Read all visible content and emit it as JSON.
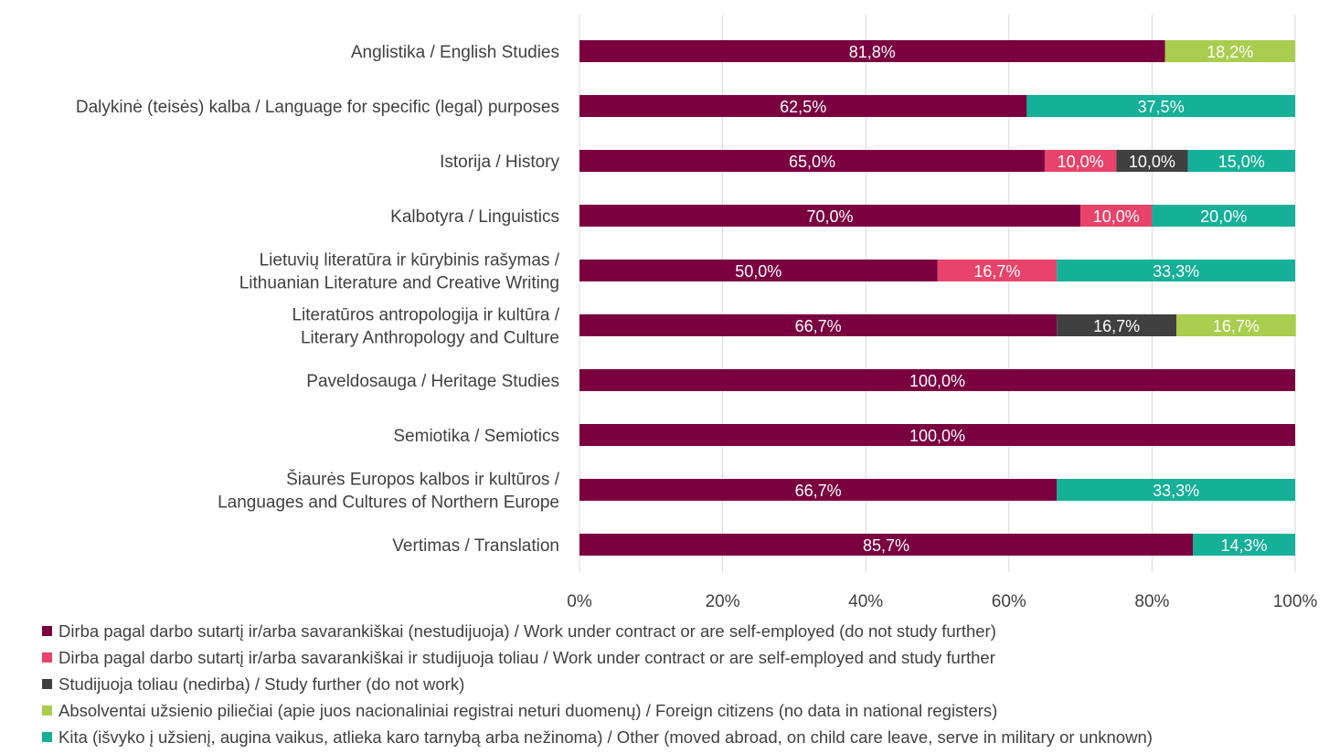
{
  "chart_data": {
    "type": "bar",
    "orientation": "horizontal",
    "stacked": "percent",
    "categories": [
      [
        "Anglistika / English Studies"
      ],
      [
        "Dalykinė (teisės) kalba / Language for specific (legal) purposes"
      ],
      [
        "Istorija / History"
      ],
      [
        "Kalbotyra / Linguistics"
      ],
      [
        "Lietuvių literatūra ir kūrybinis rašymas /",
        "Lithuanian Literature and Creative Writing"
      ],
      [
        "Literatūros antropologija ir kultūra /",
        "Literary Anthropology and Culture"
      ],
      [
        "Paveldosauga / Heritage Studies"
      ],
      [
        "Semiotika / Semiotics"
      ],
      [
        "Šiaurės Europos kalbos ir kultūros /",
        "Languages and Cultures of Northern Europe"
      ],
      [
        "Vertimas / Translation"
      ]
    ],
    "series": [
      {
        "name": "Dirba pagal darbo sutartį ir/arba savarankiškai (nestudijuoja) / Work under contract or are self-employed (do not study further)",
        "color": "#7A0040",
        "values": [
          81.8,
          62.5,
          65.0,
          70.0,
          50.0,
          66.7,
          100.0,
          100.0,
          66.7,
          85.7
        ],
        "labels": [
          "81,8%",
          "62,5%",
          "65,0%",
          "70,0%",
          "50,0%",
          "66,7%",
          "100,0%",
          "100,0%",
          "66,7%",
          "85,7%"
        ]
      },
      {
        "name": "Dirba pagal darbo sutartį ir/arba savarankiškai  ir studijuoja toliau / Work under contract or are self-employed and study further",
        "color": "#E8436A",
        "values": [
          0,
          0,
          10.0,
          10.0,
          16.7,
          0,
          0,
          0,
          0,
          0
        ],
        "labels": [
          "",
          "",
          "10,0%",
          "10,0%",
          "16,7%",
          "",
          "",
          "",
          "",
          ""
        ]
      },
      {
        "name": "Studijuoja toliau (nedirba) / Study further (do not work)",
        "color": "#404040",
        "values": [
          0,
          0,
          10.0,
          0,
          0,
          16.7,
          0,
          0,
          0,
          0
        ],
        "labels": [
          "",
          "",
          "10,0%",
          "",
          "",
          "16,7%",
          "",
          "",
          "",
          ""
        ]
      },
      {
        "name": "Absolventai užsienio piliečiai (apie juos nacionaliniai registrai neturi duomenų) / Foreign citizens (no data in national registers)",
        "color": "#A9CD4E",
        "values": [
          18.2,
          0,
          0,
          0,
          0,
          16.7,
          0,
          0,
          0,
          0
        ],
        "labels": [
          "18,2%",
          "",
          "",
          "",
          "",
          "16,7%",
          "",
          "",
          "",
          ""
        ]
      },
      {
        "name": "Kita (išvyko į užsienį, augina vaikus, atlieka karo tarnybą arba nežinoma) / Other (moved abroad, on child care leave, serve in military or unknown)",
        "color": "#14B097",
        "values": [
          0,
          37.5,
          15.0,
          20.0,
          33.3,
          0,
          0,
          0,
          33.3,
          14.3
        ],
        "labels": [
          "",
          "37,5%",
          "15,0%",
          "20,0%",
          "33,3%",
          "",
          "",
          "",
          "33,3%",
          "14,3%"
        ]
      }
    ],
    "xlim": [
      0,
      100
    ],
    "xticks": [
      "0%",
      "20%",
      "40%",
      "60%",
      "80%",
      "100%"
    ],
    "grid": true,
    "legend": "bottom"
  }
}
